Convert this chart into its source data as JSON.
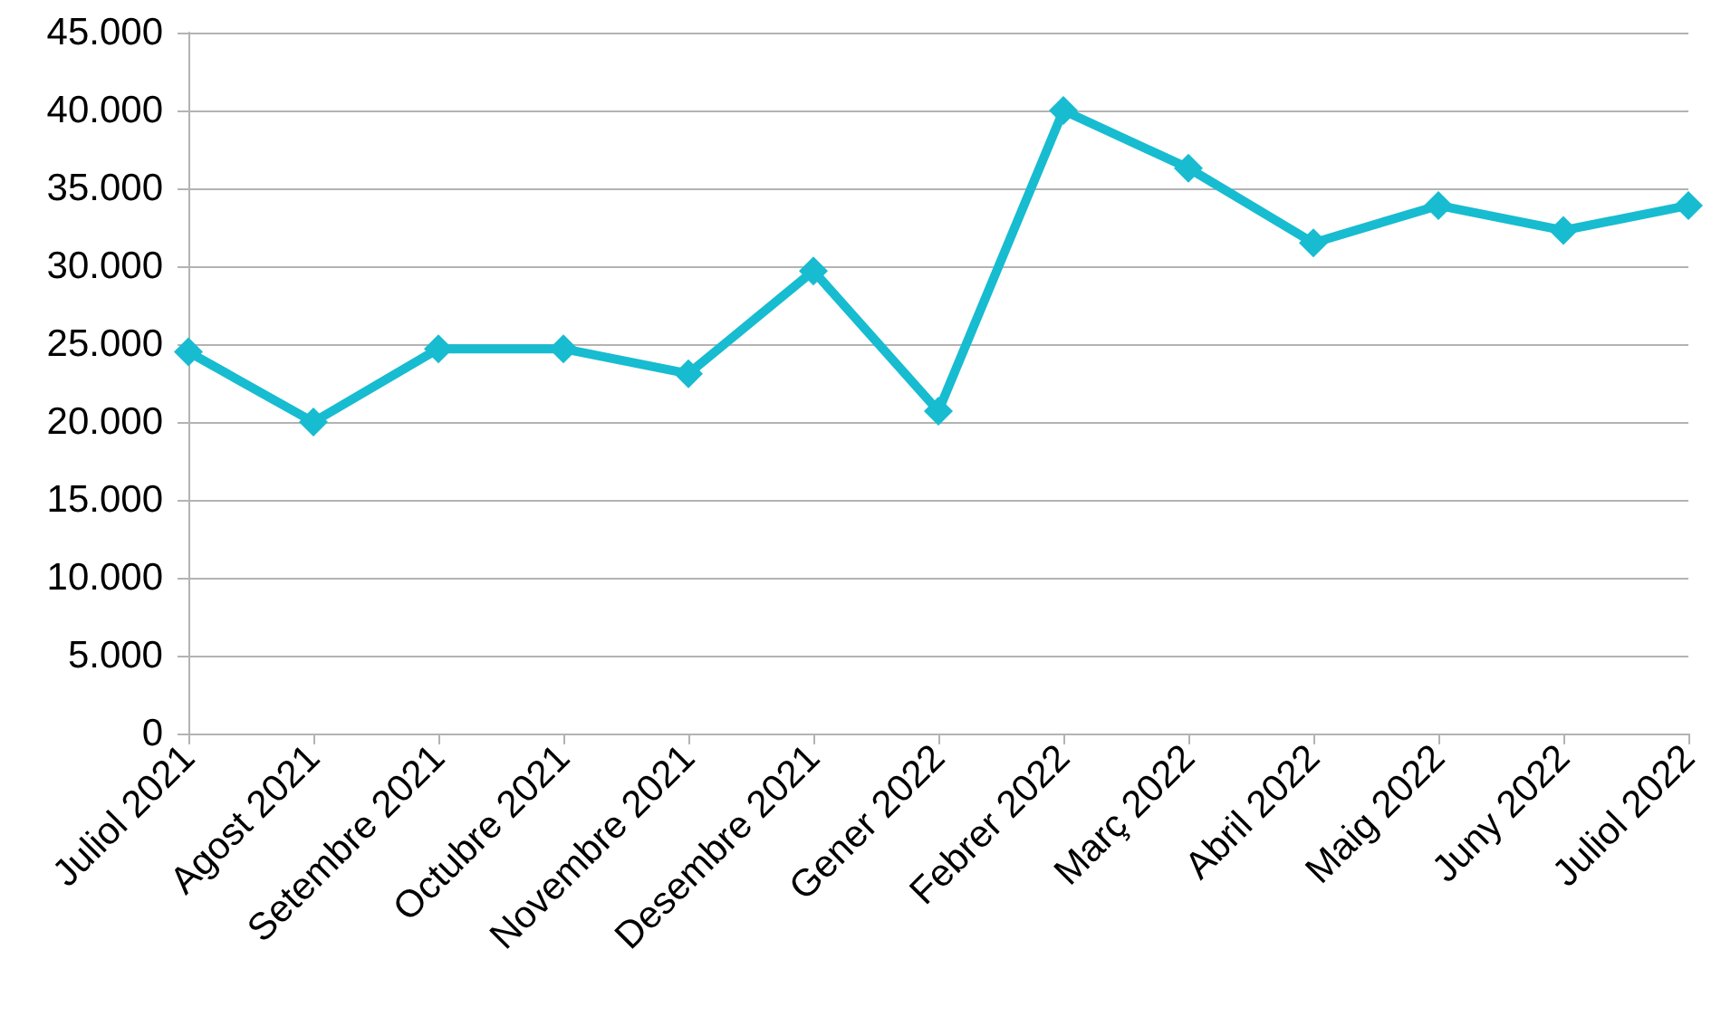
{
  "chart_data": {
    "type": "line",
    "categories": [
      "Juliol 2021",
      "Agost 2021",
      "Setembre 2021",
      "Octubre 2021",
      "Novembre 2021",
      "Desembre 2021",
      "Gener 2022",
      "Febrer 2022",
      "Març 2022",
      "Abril 2022",
      "Maig 2022",
      "Juny 2022",
      "Juliol 2022"
    ],
    "series": [
      {
        "color": "#17bcd0",
        "values": [
          24500,
          20000,
          24700,
          24700,
          23100,
          29700,
          20700,
          40000,
          36300,
          31500,
          33900,
          32300,
          33900
        ]
      }
    ],
    "ylim": [
      0,
      45000
    ],
    "yticks": [
      0,
      {
        "value": 5000,
        "label": "5.000"
      },
      {
        "value": 10000,
        "label": "10.000"
      },
      {
        "value": 15000,
        "label": "15.000"
      },
      {
        "value": 20000,
        "label": "20.000"
      },
      {
        "value": 25000,
        "label": "25.000"
      },
      {
        "value": 30000,
        "label": "30.000"
      },
      {
        "value": 35000,
        "label": "35.000"
      },
      {
        "value": 40000,
        "label": "40.000"
      },
      {
        "value": 45000,
        "label": "45.000"
      }
    ],
    "grid": "y",
    "marker": "diamond",
    "line_style": "solid"
  }
}
